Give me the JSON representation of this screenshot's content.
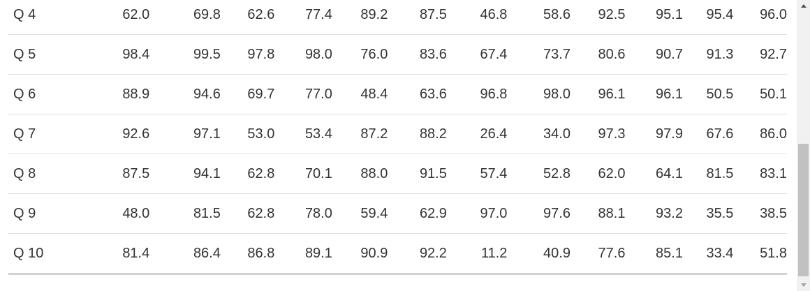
{
  "table": {
    "rows": [
      {
        "label": "Q 4",
        "values": [
          "62.0",
          "69.8",
          "62.6",
          "77.4",
          "89.2",
          "87.5",
          "46.8",
          "58.6",
          "92.5",
          "95.1",
          "95.4",
          "96.0"
        ]
      },
      {
        "label": "Q 5",
        "values": [
          "98.4",
          "99.5",
          "97.8",
          "98.0",
          "76.0",
          "83.6",
          "67.4",
          "73.7",
          "80.6",
          "90.7",
          "91.3",
          "92.7"
        ]
      },
      {
        "label": "Q 6",
        "values": [
          "88.9",
          "94.6",
          "69.7",
          "77.0",
          "48.4",
          "63.6",
          "96.8",
          "98.0",
          "96.1",
          "96.1",
          "50.5",
          "50.1"
        ]
      },
      {
        "label": "Q 7",
        "values": [
          "92.6",
          "97.1",
          "53.0",
          "53.4",
          "87.2",
          "88.2",
          "26.4",
          "34.0",
          "97.3",
          "97.9",
          "67.6",
          "86.0"
        ]
      },
      {
        "label": "Q 8",
        "values": [
          "87.5",
          "94.1",
          "62.8",
          "70.1",
          "88.0",
          "91.5",
          "57.4",
          "52.8",
          "62.0",
          "64.1",
          "81.5",
          "83.1"
        ]
      },
      {
        "label": "Q 9",
        "values": [
          "48.0",
          "81.5",
          "62.8",
          "78.0",
          "59.4",
          "62.9",
          "97.0",
          "97.6",
          "88.1",
          "93.2",
          "35.5",
          "38.5"
        ]
      },
      {
        "label": "Q 10",
        "values": [
          "81.4",
          "86.4",
          "86.8",
          "89.1",
          "90.9",
          "92.2",
          "11.2",
          "40.9",
          "77.6",
          "85.1",
          "33.4",
          "51.8"
        ]
      }
    ]
  },
  "scrollbar": {
    "up_icon": "triangle-up-icon",
    "down_icon": "triangle-down-icon"
  }
}
